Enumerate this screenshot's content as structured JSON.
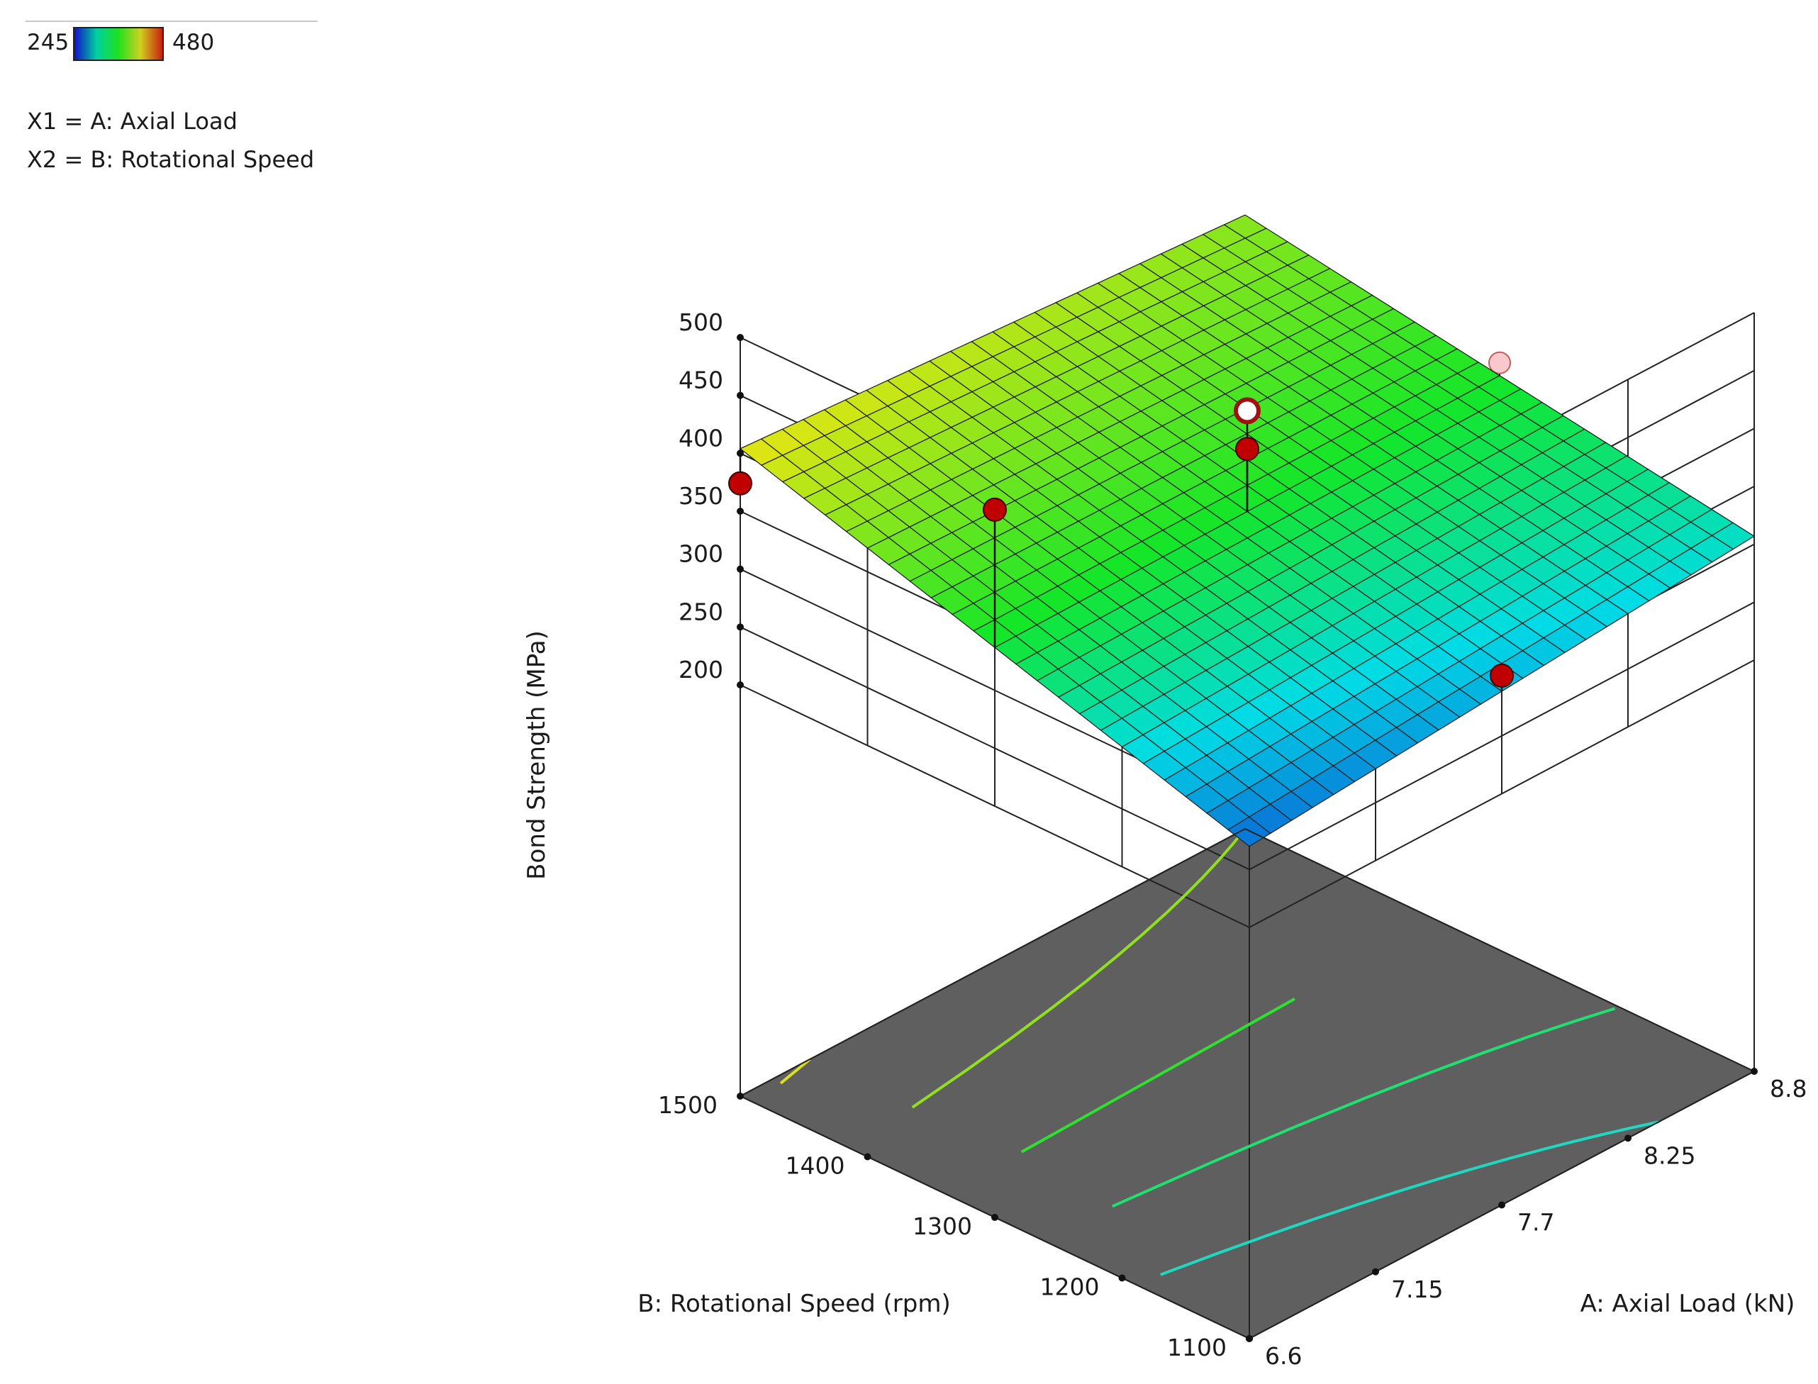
{
  "legend": {
    "min_label": "245",
    "max_label": "480",
    "gradient": [
      "#1010c8",
      "#00d0a0",
      "#20e020",
      "#d0d020",
      "#c82010"
    ]
  },
  "factors": {
    "x1": "X1 = A: Axial Load",
    "x2": "X2 = B: Rotational Speed"
  },
  "chart_data": {
    "type": "surface",
    "title": "",
    "zlabel": "Bond Strength  (MPa)",
    "xlabel": "A: Axial Load  (kN)",
    "ylabel": "B: Rotational Speed  (rpm)",
    "x_ticks": [
      "6.6",
      "7.15",
      "7.7",
      "8.25",
      "8.8"
    ],
    "y_ticks": [
      "1100",
      "1200",
      "1300",
      "1400",
      "1500"
    ],
    "z_ticks": [
      "200",
      "250",
      "300",
      "350",
      "400",
      "450",
      "500"
    ],
    "xlim": [
      6.6,
      8.8
    ],
    "ylim": [
      1100,
      1500
    ],
    "zlim": [
      200,
      500
    ],
    "surface_corners": [
      {
        "x": 6.6,
        "y": 1500,
        "z": 404
      },
      {
        "x": 8.8,
        "y": 1500,
        "z": 375
      },
      {
        "x": 6.6,
        "y": 1100,
        "z": 270
      },
      {
        "x": 8.8,
        "y": 1100,
        "z": 307
      }
    ],
    "contour_levels": [
      400,
      375,
      350,
      325,
      300
    ],
    "contour_colors": [
      "#d8e020",
      "#90e020",
      "#30e030",
      "#20e070",
      "#20d8c0"
    ],
    "floor_color": "#5f5f5f",
    "design_points": [
      {
        "x": 6.6,
        "y": 1500,
        "z": 374,
        "above": true
      },
      {
        "x": 7.7,
        "y": 1300,
        "z": 393,
        "above": true
      },
      {
        "x": 7.7,
        "y": 1300,
        "z": 426,
        "above": true,
        "center": true
      },
      {
        "x": 6.6,
        "y": 1300,
        "z": 456,
        "above": true
      },
      {
        "x": 7.7,
        "y": 1100,
        "z": 302,
        "above": true
      },
      {
        "x": 8.8,
        "y": 1300,
        "z": 352,
        "above": false
      },
      {
        "x": 7.7,
        "y": 1300,
        "z": 316,
        "above": false
      }
    ]
  }
}
